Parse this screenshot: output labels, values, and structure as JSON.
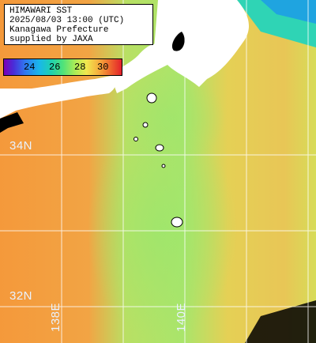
{
  "header": {
    "line1": "HIMAWARI SST",
    "line2": "2025/08/03 13:00 (UTC)",
    "line3": "Kanagawa Prefecture",
    "line4": "supplied by JAXA"
  },
  "legend": {
    "ticks": [
      "24",
      "26",
      "28",
      "30"
    ],
    "colors": [
      "#7d00b5",
      "#2f78f0",
      "#1ed0b0",
      "#a8ec57",
      "#f0e84f",
      "#f6b13e",
      "#e3212b"
    ]
  },
  "map": {
    "lat_labels": [
      "34N",
      "32N"
    ],
    "lon_labels": [
      "138E",
      "140E"
    ],
    "colors": {
      "warm": "#f4993b",
      "mid": "#d9dd57",
      "cool": "#9ee66c",
      "cold": "#2fd4b5",
      "land": "#ffffff",
      "no_data": "#000000",
      "grid": "#ffffff"
    }
  }
}
